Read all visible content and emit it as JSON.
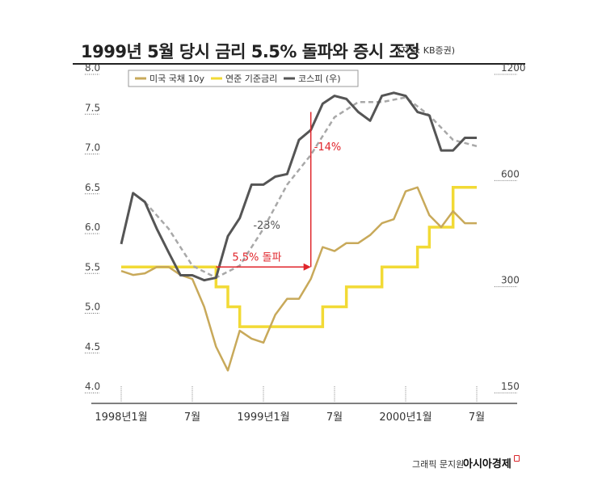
{
  "title": "1999년 5월 당시 금리 5.5% 돌파와 증시 조정",
  "source": "(자료: KB증권)",
  "credit": "그래픽 문지원",
  "brand": "아시아경제",
  "chart_data": {
    "type": "line",
    "left_axis": {
      "ticks": [
        "8.0",
        "7.5",
        "7.0",
        "6.5",
        "6.0",
        "5.5",
        "5.0",
        "4.5",
        "4.0"
      ],
      "range": [
        4.0,
        8.0
      ]
    },
    "right_axis": {
      "ticks": [
        "1200",
        "600",
        "300",
        "150"
      ],
      "values": [
        1200,
        600,
        300,
        150
      ],
      "scale": "log"
    },
    "x_axis": {
      "labels": [
        "1998년1월",
        "7월",
        "1999년1월",
        "7월",
        "2000년1월",
        "7월"
      ],
      "range": [
        "1998-01",
        "2000-07"
      ]
    },
    "legend": [
      "미국 국채 10y",
      "연준 기준금리",
      "코스피 (우)"
    ],
    "colors": {
      "treasury": "#c8a95a",
      "fed": "#f2da35",
      "kospi": "#555555",
      "moving_average": "#a8a8a8",
      "annotation": "#e0252b"
    },
    "series": [
      {
        "name": "미국 국채 10y",
        "x": [
          "1998-01",
          "1998-02",
          "1998-03",
          "1998-04",
          "1998-05",
          "1998-06",
          "1998-07",
          "1998-08",
          "1998-09",
          "1998-10",
          "1998-11",
          "1998-12",
          "1999-01",
          "1999-02",
          "1999-03",
          "1999-04",
          "1999-05",
          "1999-06",
          "1999-07",
          "1999-08",
          "1999-09",
          "1999-10",
          "1999-11",
          "1999-12",
          "2000-01",
          "2000-02",
          "2000-03",
          "2000-04",
          "2000-05",
          "2000-06",
          "2000-07"
        ],
        "values": [
          5.45,
          5.4,
          5.42,
          5.5,
          5.5,
          5.4,
          5.35,
          5.0,
          4.5,
          4.2,
          4.7,
          4.6,
          4.55,
          4.9,
          5.1,
          5.1,
          5.35,
          5.75,
          5.7,
          5.8,
          5.8,
          5.9,
          6.05,
          6.1,
          6.45,
          6.5,
          6.15,
          6.0,
          6.2,
          6.05,
          6.05
        ]
      },
      {
        "name": "연준 기준금리",
        "x": [
          "1998-01",
          "1998-09",
          "1998-10",
          "1998-11",
          "1999-06",
          "1999-08",
          "1999-11",
          "2000-02",
          "2000-03",
          "2000-05",
          "2000-07"
        ],
        "values": [
          5.5,
          5.25,
          5.0,
          4.75,
          5.0,
          5.25,
          5.5,
          5.75,
          6.0,
          6.5,
          6.5
        ]
      },
      {
        "name": "코스피 (우)",
        "x": [
          "1998-01",
          "1998-02",
          "1998-03",
          "1998-04",
          "1998-05",
          "1998-06",
          "1998-07",
          "1998-08",
          "1998-09",
          "1998-10",
          "1998-11",
          "1998-12",
          "1999-01",
          "1999-02",
          "1999-03",
          "1999-04",
          "1999-05",
          "1999-06",
          "1999-07",
          "1999-08",
          "1999-09",
          "1999-10",
          "1999-11",
          "1999-12",
          "2000-01",
          "2000-02",
          "2000-03",
          "2000-04",
          "2000-05",
          "2000-06",
          "2000-07"
        ],
        "values": [
          380,
          530,
          500,
          420,
          360,
          310,
          310,
          300,
          305,
          400,
          450,
          560,
          560,
          590,
          600,
          750,
          800,
          950,
          1000,
          980,
          900,
          850,
          1000,
          1020,
          1000,
          900,
          880,
          700,
          700,
          760,
          760
        ]
      }
    ],
    "moving_average": {
      "x": [
        "1998-03",
        "1998-05",
        "1998-07",
        "1998-09",
        "1998-11",
        "1999-01",
        "1999-03",
        "1999-05",
        "1999-07",
        "1999-09",
        "1999-11",
        "2000-01",
        "2000-03",
        "2000-05",
        "2000-07"
      ],
      "values": [
        500,
        420,
        330,
        305,
        330,
        420,
        560,
        680,
        870,
        960,
        960,
        990,
        880,
        750,
        720
      ]
    },
    "annotations": [
      {
        "text": "5.5% 돌파",
        "color": "#e0252b"
      },
      {
        "text": "-23%",
        "color": "#555555"
      },
      {
        "text": "-14%",
        "color": "#e0252b"
      }
    ]
  }
}
